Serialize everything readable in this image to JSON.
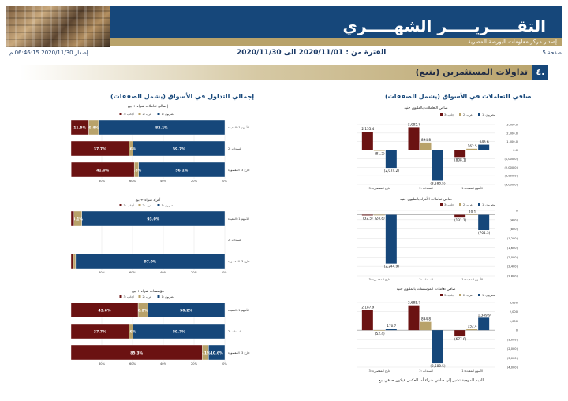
{
  "header": {
    "title": "التقـــــريـــــر الشهـــــري",
    "subtitle": "إصدار مركز معلومات البورصة المصرية",
    "page_label": "صفحة 5",
    "issue_label": "إصدار 2020/11/30 06:46:15 م",
    "period": "الفترة من : 2020/11/01 الى 2020/11/30"
  },
  "section": {
    "number": "٤.",
    "title": "تداولات المستثمرين (يتبع)"
  },
  "left_title": "صافي التعاملات في الأسواق (يشمل الصفقات)",
  "right_title": "إجمالي التداول في الأسواق (يشمل الصفقات)",
  "footnote": "القيم الموجبة تشير إلى صافي شراء أما العكس فيكون صافي بيع",
  "colors": {
    "egyptians": "#16477a",
    "arabs": "#b8a26a",
    "foreigners": "#6b1212",
    "grid": "#d9d9d9"
  },
  "legend": {
    "egyptians": "مصريون :1",
    "arabs": "عرب :2",
    "foreigners": "أجانب :3"
  },
  "chart_data": [
    {
      "type": "bar",
      "title": "صافي التعاملات بالمليون جنيه",
      "categories": [
        "الأسهم المقيدة :1",
        "السندات :2",
        "خارج المقصورة :3"
      ],
      "series": [
        {
          "name": "مصريون :1",
          "values": [
            645.6,
            -3580.5,
            -2074.2
          ]
        },
        {
          "name": "عرب :2",
          "values": [
            162.5,
            894.8,
            -81.2
          ]
        },
        {
          "name": "أجانب :3",
          "values": [
            -808.1,
            2685.7,
            2155.4
          ]
        }
      ],
      "data_labels": [
        [
          "645.6",
          "(3,580.5)",
          "(2,074.2)"
        ],
        [
          "162.5",
          "894.8",
          "(81.2)"
        ],
        [
          "(808.1)",
          "2,685.7",
          "2,155.4"
        ]
      ],
      "ylim": [
        -4000,
        3000
      ],
      "yticks": [
        "3,000.0",
        "2,000.0",
        "1,000.0",
        "0.0",
        "(1,000.0)",
        "(2,000.0)",
        "(3,000.0)",
        "(4,000.0)"
      ]
    },
    {
      "type": "bar",
      "title": "صافي تعاملات الأفراد بالمليون جنيه",
      "categories": [
        "الأسهم المقيدة :1",
        "السندات :2",
        "خارج المقصورة :3"
      ],
      "series": [
        {
          "name": "مصريون :1",
          "values": [
            -704.3,
            0,
            -2244.9
          ]
        },
        {
          "name": "عرب :2",
          "values": [
            10.1,
            0,
            -28.8
          ]
        },
        {
          "name": "أجانب :3",
          "values": [
            -131.1,
            0,
            -32.5
          ]
        }
      ],
      "data_labels": [
        [
          "(704.3)",
          "",
          "(2,244.9)"
        ],
        [
          "10.1",
          "",
          "(28.8)"
        ],
        [
          "(131.1)",
          "",
          "(32.5)"
        ]
      ],
      "ylim": [
        -2800,
        200
      ],
      "yticks": [
        "0",
        "(400)",
        "(800)",
        "(1,200)",
        "(1,600)",
        "(2,000)",
        "(2,400)",
        "(2,800)"
      ]
    },
    {
      "type": "bar",
      "title": "صافي تعاملات المؤسسات بالمليون جنيه",
      "categories": [
        "الأسهم المقيدة :1",
        "السندات :2",
        "خارج المقصورة :3"
      ],
      "series": [
        {
          "name": "مصريون :1",
          "values": [
            1349.9,
            -3580.5,
            170.7
          ]
        },
        {
          "name": "عرب :2",
          "values": [
            152.4,
            894.8,
            -52.4
          ]
        },
        {
          "name": "أجانب :3",
          "values": [
            -677.0,
            2685.7,
            2187.9
          ]
        }
      ],
      "data_labels": [
        [
          "1,349.9",
          "(3,580.5)",
          "170.7"
        ],
        [
          "152.4",
          "894.8",
          "(52.4)"
        ],
        [
          "(677.0)",
          "2,685.7",
          "2,187.9"
        ]
      ],
      "ylim": [
        -4000,
        3000
      ],
      "yticks": [
        "3,000",
        "2,000",
        "1,000",
        "0",
        "(1,000)",
        "(2,000)",
        "(3,000)",
        "(4,000)"
      ]
    },
    {
      "type": "bar",
      "title": "إجمالي تعاملات شراء + بيع",
      "categories": [
        "الأسهم 1: المقيدة",
        "السندات :2",
        "خارج 3: المقصورة"
      ],
      "series": [
        {
          "name": "مصريون :1",
          "values": [
            82.1,
            59.7,
            56.1
          ]
        },
        {
          "name": "عرب :2",
          "values": [
            6.4,
            2.6,
            2.8
          ]
        },
        {
          "name": "أجانب :3",
          "values": [
            11.5,
            37.7,
            41.0
          ]
        }
      ],
      "data_labels": [
        [
          "82.1%",
          "59.7%",
          "56.1%"
        ],
        [
          "6.4%",
          "2.6%",
          "2.8%"
        ],
        [
          "11.5%",
          "37.7%",
          "41.0%"
        ]
      ],
      "xticks": [
        "0%",
        "20%",
        "40%",
        "60%",
        "80%"
      ]
    },
    {
      "type": "bar",
      "title": "أفراد شراء + بيع",
      "categories": [
        "الأسهم 1: المقيدة",
        "السندات :2",
        "خارج 3: المقصورة"
      ],
      "series": [
        {
          "name": "مصريون :1",
          "values": [
            93.0,
            0,
            97.0
          ]
        },
        {
          "name": "عرب :2",
          "values": [
            5.1,
            0,
            1.5
          ]
        },
        {
          "name": "أجانب :3",
          "values": [
            1.9,
            0,
            1.5
          ]
        }
      ],
      "data_labels": [
        [
          "93.0%",
          "",
          "97.0%"
        ],
        [
          "5.1%",
          "",
          ""
        ],
        [
          "",
          "",
          ""
        ]
      ],
      "xticks": [
        "0%",
        "20%",
        "40%",
        "60%",
        "80%"
      ]
    },
    {
      "type": "bar",
      "title": "مؤسسات شراء + بيع",
      "categories": [
        "الأسهم 1: المقيدة",
        "السندات :2",
        "خارج 3: المقصورة"
      ],
      "series": [
        {
          "name": "مصريون :1",
          "values": [
            50.2,
            59.7,
            10.6
          ]
        },
        {
          "name": "عرب :2",
          "values": [
            6.2,
            2.6,
            4.1
          ]
        },
        {
          "name": "أجانب :3",
          "values": [
            43.6,
            37.7,
            85.3
          ]
        }
      ],
      "data_labels": [
        [
          "50.2%",
          "59.7%",
          "10.6%"
        ],
        [
          "6.2%",
          "2.6%",
          "4.1%"
        ],
        [
          "43.6%",
          "37.7%",
          "85.3%"
        ]
      ],
      "xticks": [
        "0%",
        "20%",
        "40%",
        "60%",
        "80%"
      ]
    }
  ]
}
